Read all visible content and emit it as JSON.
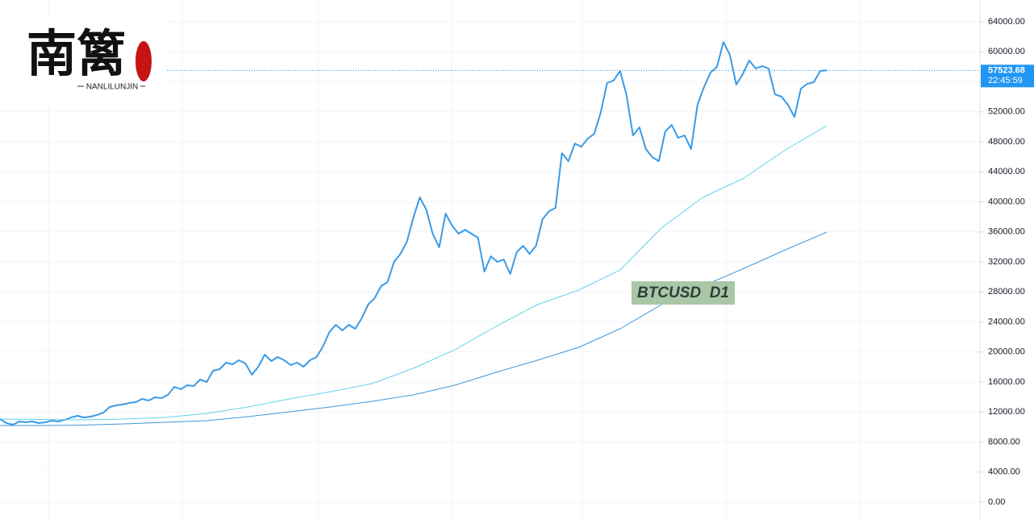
{
  "chart_data": {
    "type": "line",
    "logo": {
      "title": "南篱",
      "subtitle": "NANLILUNJIN"
    },
    "watermark": "BTCUSD  D1",
    "last_price": 57523.68,
    "countdown": "22:45:59",
    "price_tag_color": "#2196f3",
    "grid": true,
    "ylim": [
      -2255,
      66900
    ],
    "yticks": [
      {
        "value": 0,
        "label": "0.00"
      },
      {
        "value": 4000,
        "label": "4000.00"
      },
      {
        "value": 8000,
        "label": "8000.00"
      },
      {
        "value": 12000,
        "label": "12000.00"
      },
      {
        "value": 16000,
        "label": "16000.00"
      },
      {
        "value": 20000,
        "label": "20000.00"
      },
      {
        "value": 24000,
        "label": "24000.00"
      },
      {
        "value": 28000,
        "label": "28000.00"
      },
      {
        "value": 32000,
        "label": "32000.00"
      },
      {
        "value": 36000,
        "label": "36000.00"
      },
      {
        "value": 40000,
        "label": "40000.00"
      },
      {
        "value": 44000,
        "label": "44000.00"
      },
      {
        "value": 48000,
        "label": "48000.00"
      },
      {
        "value": 52000,
        "label": "52000.00"
      },
      {
        "value": 56000,
        "label": "56000.00"
      },
      {
        "value": 60000,
        "label": "60000.00"
      },
      {
        "value": 64000,
        "label": "64000.00"
      }
    ],
    "series": [
      {
        "color": "#3a9ae6",
        "width": 2,
        "values": [
          11060,
          10520,
          10310,
          10740,
          10630,
          10740,
          10520,
          10630,
          10850,
          10740,
          10950,
          11270,
          11490,
          11270,
          11380,
          11600,
          11920,
          12670,
          12890,
          13000,
          13210,
          13320,
          13740,
          13530,
          13960,
          13850,
          14280,
          15360,
          15030,
          15570,
          15460,
          16320,
          16000,
          17500,
          17720,
          18580,
          18360,
          18900,
          18470,
          16970,
          18040,
          19650,
          18790,
          19330,
          18900,
          18250,
          18580,
          18040,
          18900,
          19330,
          20720,
          22660,
          23620,
          22870,
          23620,
          23090,
          24480,
          26310,
          27170,
          28780,
          29310,
          32000,
          33070,
          34680,
          37910,
          40590,
          38980,
          35760,
          33930,
          38440,
          36830,
          35760,
          36290,
          35760,
          35220,
          30710,
          32750,
          32000,
          32320,
          30390,
          33290,
          34150,
          33070,
          34150,
          37690,
          38760,
          39190,
          46500,
          45420,
          47780,
          47350,
          48430,
          49070,
          51860,
          55840,
          56160,
          57450,
          54230,
          48860,
          49930,
          47030,
          45960,
          45420,
          49390,
          50250,
          48540,
          48860,
          47030,
          52940,
          55300,
          57230,
          57990,
          61310,
          59600,
          55620,
          57020,
          58840,
          57770,
          58090,
          57770,
          54330,
          54010,
          52940,
          51330,
          55090,
          55730,
          55950,
          57450,
          57524
        ]
      },
      {
        "color": "#62d2ea",
        "width": 1,
        "values": [
          11060,
          11010,
          10950,
          11060,
          11270,
          11810,
          12670,
          13740,
          14710,
          15790,
          17830,
          20290,
          23410,
          26310,
          28240,
          30930,
          36510,
          40590,
          43170,
          46930,
          50150
        ]
      },
      {
        "color": "#3f97d8",
        "width": 1,
        "values": [
          10200,
          10200,
          10250,
          10420,
          10630,
          10850,
          11380,
          12030,
          12670,
          13420,
          14280,
          15570,
          17290,
          18900,
          20620,
          23090,
          26310,
          28780,
          31140,
          33610,
          35970
        ]
      }
    ]
  }
}
